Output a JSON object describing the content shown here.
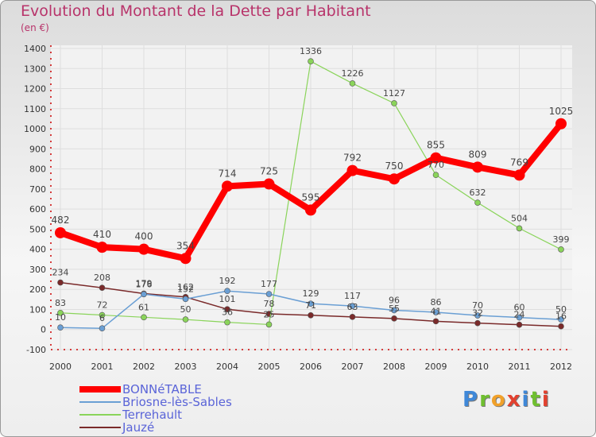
{
  "title": "Evolution du Montant de la Dette par Habitant",
  "subtitle": "(en €)",
  "logo_text": "Proxiti",
  "chart_data": {
    "type": "line",
    "title": "Evolution du Montant de la Dette par Habitant",
    "subtitle": "(en €)",
    "x": [
      2000,
      2001,
      2002,
      2003,
      2004,
      2005,
      2006,
      2007,
      2008,
      2009,
      2010,
      2011,
      2012
    ],
    "ylim": [
      -100,
      1400
    ],
    "yticks": [
      -100,
      0,
      100,
      200,
      300,
      400,
      500,
      600,
      700,
      800,
      900,
      1000,
      1100,
      1200,
      1300,
      1400
    ],
    "grid": true,
    "legend_position": "bottom-left",
    "series": [
      {
        "name": "BONNéTABLE",
        "color": "#ff0000",
        "values": [
          482,
          410,
          400,
          354,
          714,
          725,
          595,
          792,
          750,
          855,
          809,
          769,
          1025
        ]
      },
      {
        "name": "Briosne-lès-Sables",
        "color": "#6a9fd4",
        "values": [
          10,
          6,
          176,
          152,
          192,
          177,
          129,
          117,
          96,
          86,
          70,
          60,
          50
        ]
      },
      {
        "name": "Terrehault",
        "color": "#8ad45a",
        "values": [
          83,
          72,
          61,
          50,
          36,
          25,
          1336,
          1226,
          1127,
          770,
          632,
          504,
          399
        ]
      },
      {
        "name": "Jauzé",
        "color": "#7a2a2a",
        "values": [
          234,
          208,
          179,
          162,
          101,
          78,
          71,
          63,
          55,
          41,
          32,
          24,
          16
        ]
      }
    ]
  }
}
